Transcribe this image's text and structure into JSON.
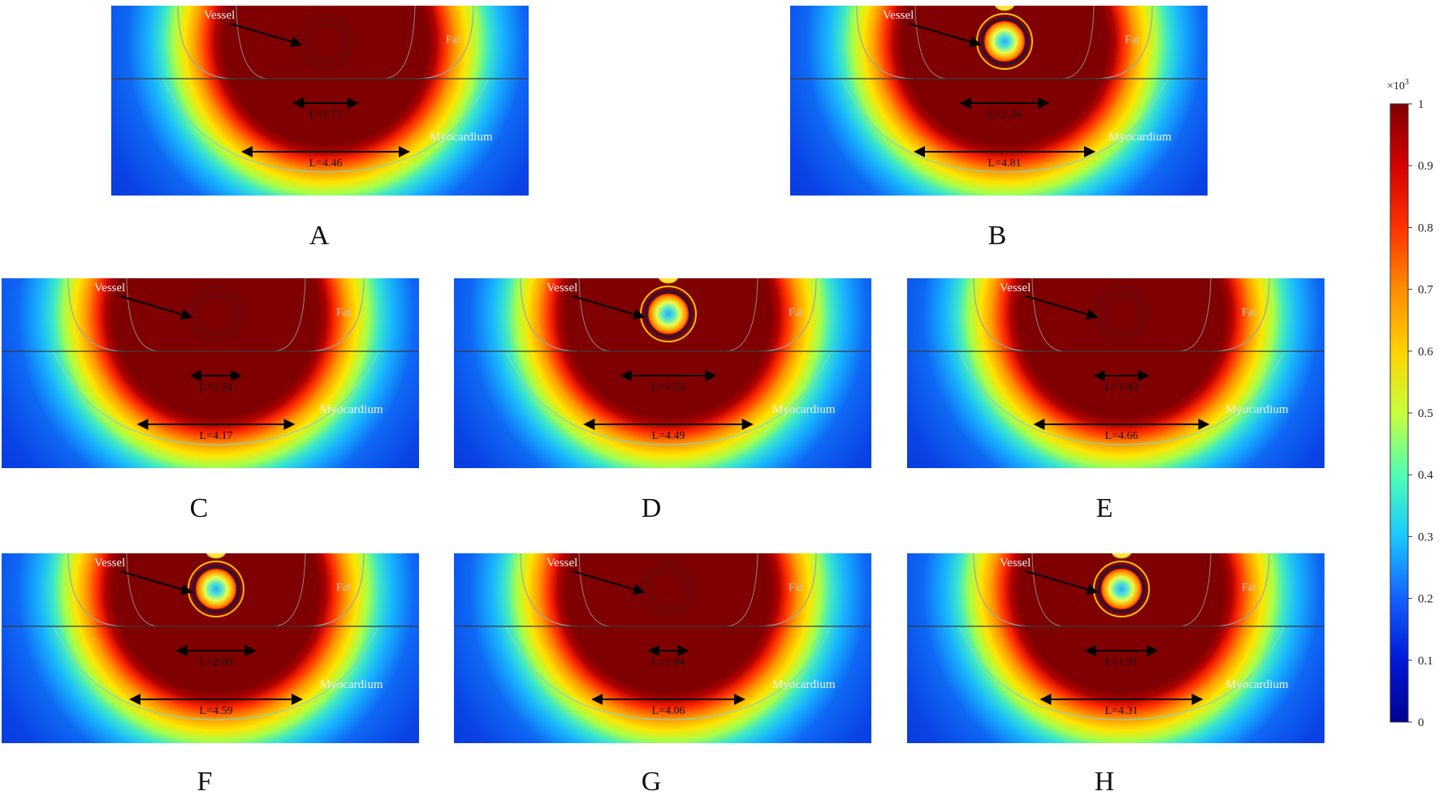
{
  "panels": [
    {
      "letter": "A",
      "vessel": "Vessel",
      "fat": "Fat",
      "myocardium": "Myocardium",
      "inner": "L=1.71",
      "outer": "L=4.46",
      "cooled": false,
      "inner_value": 1.71,
      "outer_value": 4.46
    },
    {
      "letter": "B",
      "vessel": "Vessel",
      "fat": "Fat",
      "myocardium": "Myocardium",
      "inner": "L=2.34",
      "outer": "L=4.81",
      "cooled": true,
      "inner_value": 2.34,
      "outer_value": 4.81
    },
    {
      "letter": "C",
      "vessel": "Vessel",
      "fat": "Fat",
      "myocardium": "Myocardium",
      "inner": "L=1.34",
      "outer": "L=4.17",
      "cooled": false,
      "inner_value": 1.34,
      "outer_value": 4.17
    },
    {
      "letter": "D",
      "vessel": "Vessel",
      "fat": "Fat",
      "myocardium": "Myocardium",
      "inner": "L=2.52",
      "outer": "L=4.49",
      "cooled": true,
      "inner_value": 2.52,
      "outer_value": 4.49
    },
    {
      "letter": "E",
      "vessel": "Vessel",
      "fat": "Fat",
      "myocardium": "Myocardium",
      "inner": "L=1.43",
      "outer": "L=4.66",
      "cooled": false,
      "inner_value": 1.43,
      "outer_value": 4.66
    },
    {
      "letter": "F",
      "vessel": "Vessel",
      "fat": "Fat",
      "myocardium": "Myocardium",
      "inner": "L=2.09",
      "outer": "L=4.59",
      "cooled": true,
      "inner_value": 2.09,
      "outer_value": 4.59
    },
    {
      "letter": "G",
      "vessel": "Vessel",
      "fat": "Fat",
      "myocardium": "Myocardium",
      "inner": "L=1.04",
      "outer": "L=4.06",
      "cooled": false,
      "inner_value": 1.04,
      "outer_value": 4.06
    },
    {
      "letter": "H",
      "vessel": "Vessel",
      "fat": "Fat",
      "myocardium": "Myocardium",
      "inner": "L=1.91",
      "outer": "L=4.31",
      "cooled": true,
      "inner_value": 1.91,
      "outer_value": 4.31
    }
  ],
  "colorbar": {
    "multiplier": "×10",
    "exponent": "3",
    "ticks": [
      "1",
      "0.9",
      "0.8",
      "0.7",
      "0.6",
      "0.5",
      "0.4",
      "0.3",
      "0.2",
      "0.1",
      "0"
    ],
    "colors": [
      "#7f0000",
      "#d40000",
      "#ff3300",
      "#ff8c00",
      "#ffd200",
      "#c8ff3c",
      "#50ffb4",
      "#18c8ff",
      "#1460ff",
      "#0018d8",
      "#00008f"
    ]
  }
}
